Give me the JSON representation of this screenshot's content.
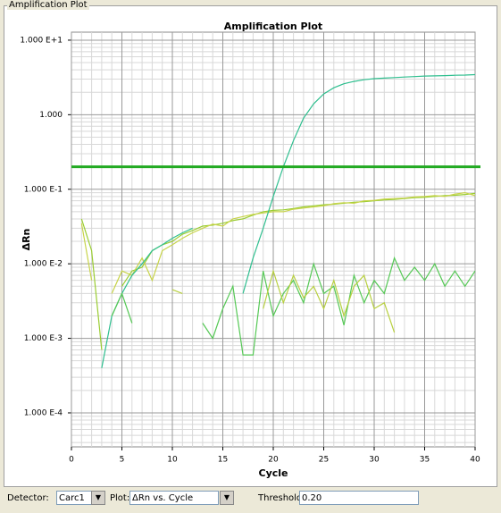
{
  "panel_title": "Amplification Plot",
  "chart_data": {
    "type": "line",
    "title": "Amplification Plot",
    "xlabel": "Cycle",
    "ylabel": "ΔRn",
    "log_y": true,
    "grid": true,
    "minor_grid": true,
    "xlim": [
      0,
      40
    ],
    "xticks": [
      0,
      5,
      10,
      15,
      20,
      25,
      30,
      35,
      40
    ],
    "ylim": [
      3.5e-05,
      12.8
    ],
    "yticks": [
      {
        "value": 10,
        "label": "1.000 E+1"
      },
      {
        "value": 1,
        "label": "1.000"
      },
      {
        "value": 0.1,
        "label": "1.000 E-1"
      },
      {
        "value": 0.01,
        "label": "1.000 E-2"
      },
      {
        "value": 0.001,
        "label": "1.000 E-3"
      },
      {
        "value": 0.0001,
        "label": "1.000 E-4"
      }
    ],
    "threshold": {
      "value": 0.2,
      "label": "0.20",
      "color": "#22aa22"
    },
    "x": [
      1,
      2,
      3,
      4,
      5,
      6,
      7,
      8,
      9,
      10,
      11,
      12,
      13,
      14,
      15,
      16,
      17,
      18,
      19,
      20,
      21,
      22,
      23,
      24,
      25,
      26,
      27,
      28,
      29,
      30,
      31,
      32,
      33,
      34,
      35,
      36,
      37,
      38,
      39,
      40
    ],
    "series": [
      {
        "color": "#9acd32",
        "values": [
          0.04,
          0.015,
          0.0007,
          null,
          0.005,
          0.008,
          0.009,
          0.015,
          0.018,
          0.02,
          0.025,
          0.028,
          0.032,
          0.033,
          0.035,
          0.038,
          0.04,
          0.045,
          0.05,
          0.052,
          0.053,
          0.055,
          0.058,
          0.06,
          0.062,
          0.063,
          0.065,
          0.067,
          0.068,
          0.07,
          0.072,
          0.073,
          0.075,
          0.077,
          0.078,
          0.08,
          0.082,
          0.083,
          0.085,
          0.088
        ]
      },
      {
        "color": "#c8d44a",
        "values": [
          0.035,
          0.006,
          null,
          0.004,
          0.008,
          0.007,
          0.012,
          0.006,
          0.015,
          0.018,
          0.022,
          0.026,
          0.03,
          0.034,
          0.032,
          0.04,
          0.043,
          0.046,
          0.048,
          0.05,
          0.05,
          0.054,
          0.056,
          0.058,
          0.06,
          0.064,
          0.066,
          0.065,
          0.07,
          0.071,
          0.074,
          0.075,
          0.076,
          0.079,
          0.08,
          0.082,
          0.08,
          0.086,
          0.09,
          0.082
        ]
      },
      {
        "color": "#2fbf8f",
        "values": [
          null,
          null,
          0.0004,
          0.002,
          0.004,
          0.007,
          0.01,
          0.015,
          0.018,
          0.022,
          0.026,
          0.03,
          null,
          null,
          null,
          null,
          0.004,
          0.012,
          0.03,
          0.08,
          0.2,
          0.45,
          0.9,
          1.4,
          1.9,
          2.3,
          2.6,
          2.8,
          2.95,
          3.05,
          3.1,
          3.15,
          3.2,
          3.25,
          3.3,
          3.32,
          3.35,
          3.38,
          3.4,
          3.45
        ]
      },
      {
        "color": "#55c855",
        "values": [
          null,
          null,
          null,
          0.002,
          0.004,
          0.0016,
          null,
          null,
          null,
          null,
          null,
          null,
          0.0016,
          0.001,
          0.0025,
          0.005,
          0.0006,
          0.0006,
          0.008,
          0.002,
          0.004,
          0.006,
          0.003,
          0.01,
          0.004,
          0.005,
          0.0015,
          0.007,
          0.003,
          0.006,
          0.004,
          0.012,
          0.006,
          0.009,
          0.006,
          0.01,
          0.005,
          0.008,
          0.005,
          0.008
        ]
      },
      {
        "color": "#b8d040",
        "values": [
          null,
          null,
          null,
          null,
          null,
          null,
          null,
          null,
          null,
          0.0045,
          0.004,
          null,
          null,
          null,
          null,
          null,
          null,
          null,
          0.0025,
          0.008,
          0.003,
          0.007,
          0.0035,
          0.005,
          0.0025,
          0.006,
          0.002,
          0.005,
          0.007,
          0.0025,
          0.003,
          0.0012,
          null,
          null,
          null,
          null,
          null,
          null,
          null,
          null
        ]
      }
    ]
  },
  "toolbar": {
    "detector_label": "Detector:",
    "detector": "Carc1",
    "plot_label": "Plot:",
    "plot": "ΔRn vs. Cycle",
    "threshold_label": "Threshold:"
  }
}
